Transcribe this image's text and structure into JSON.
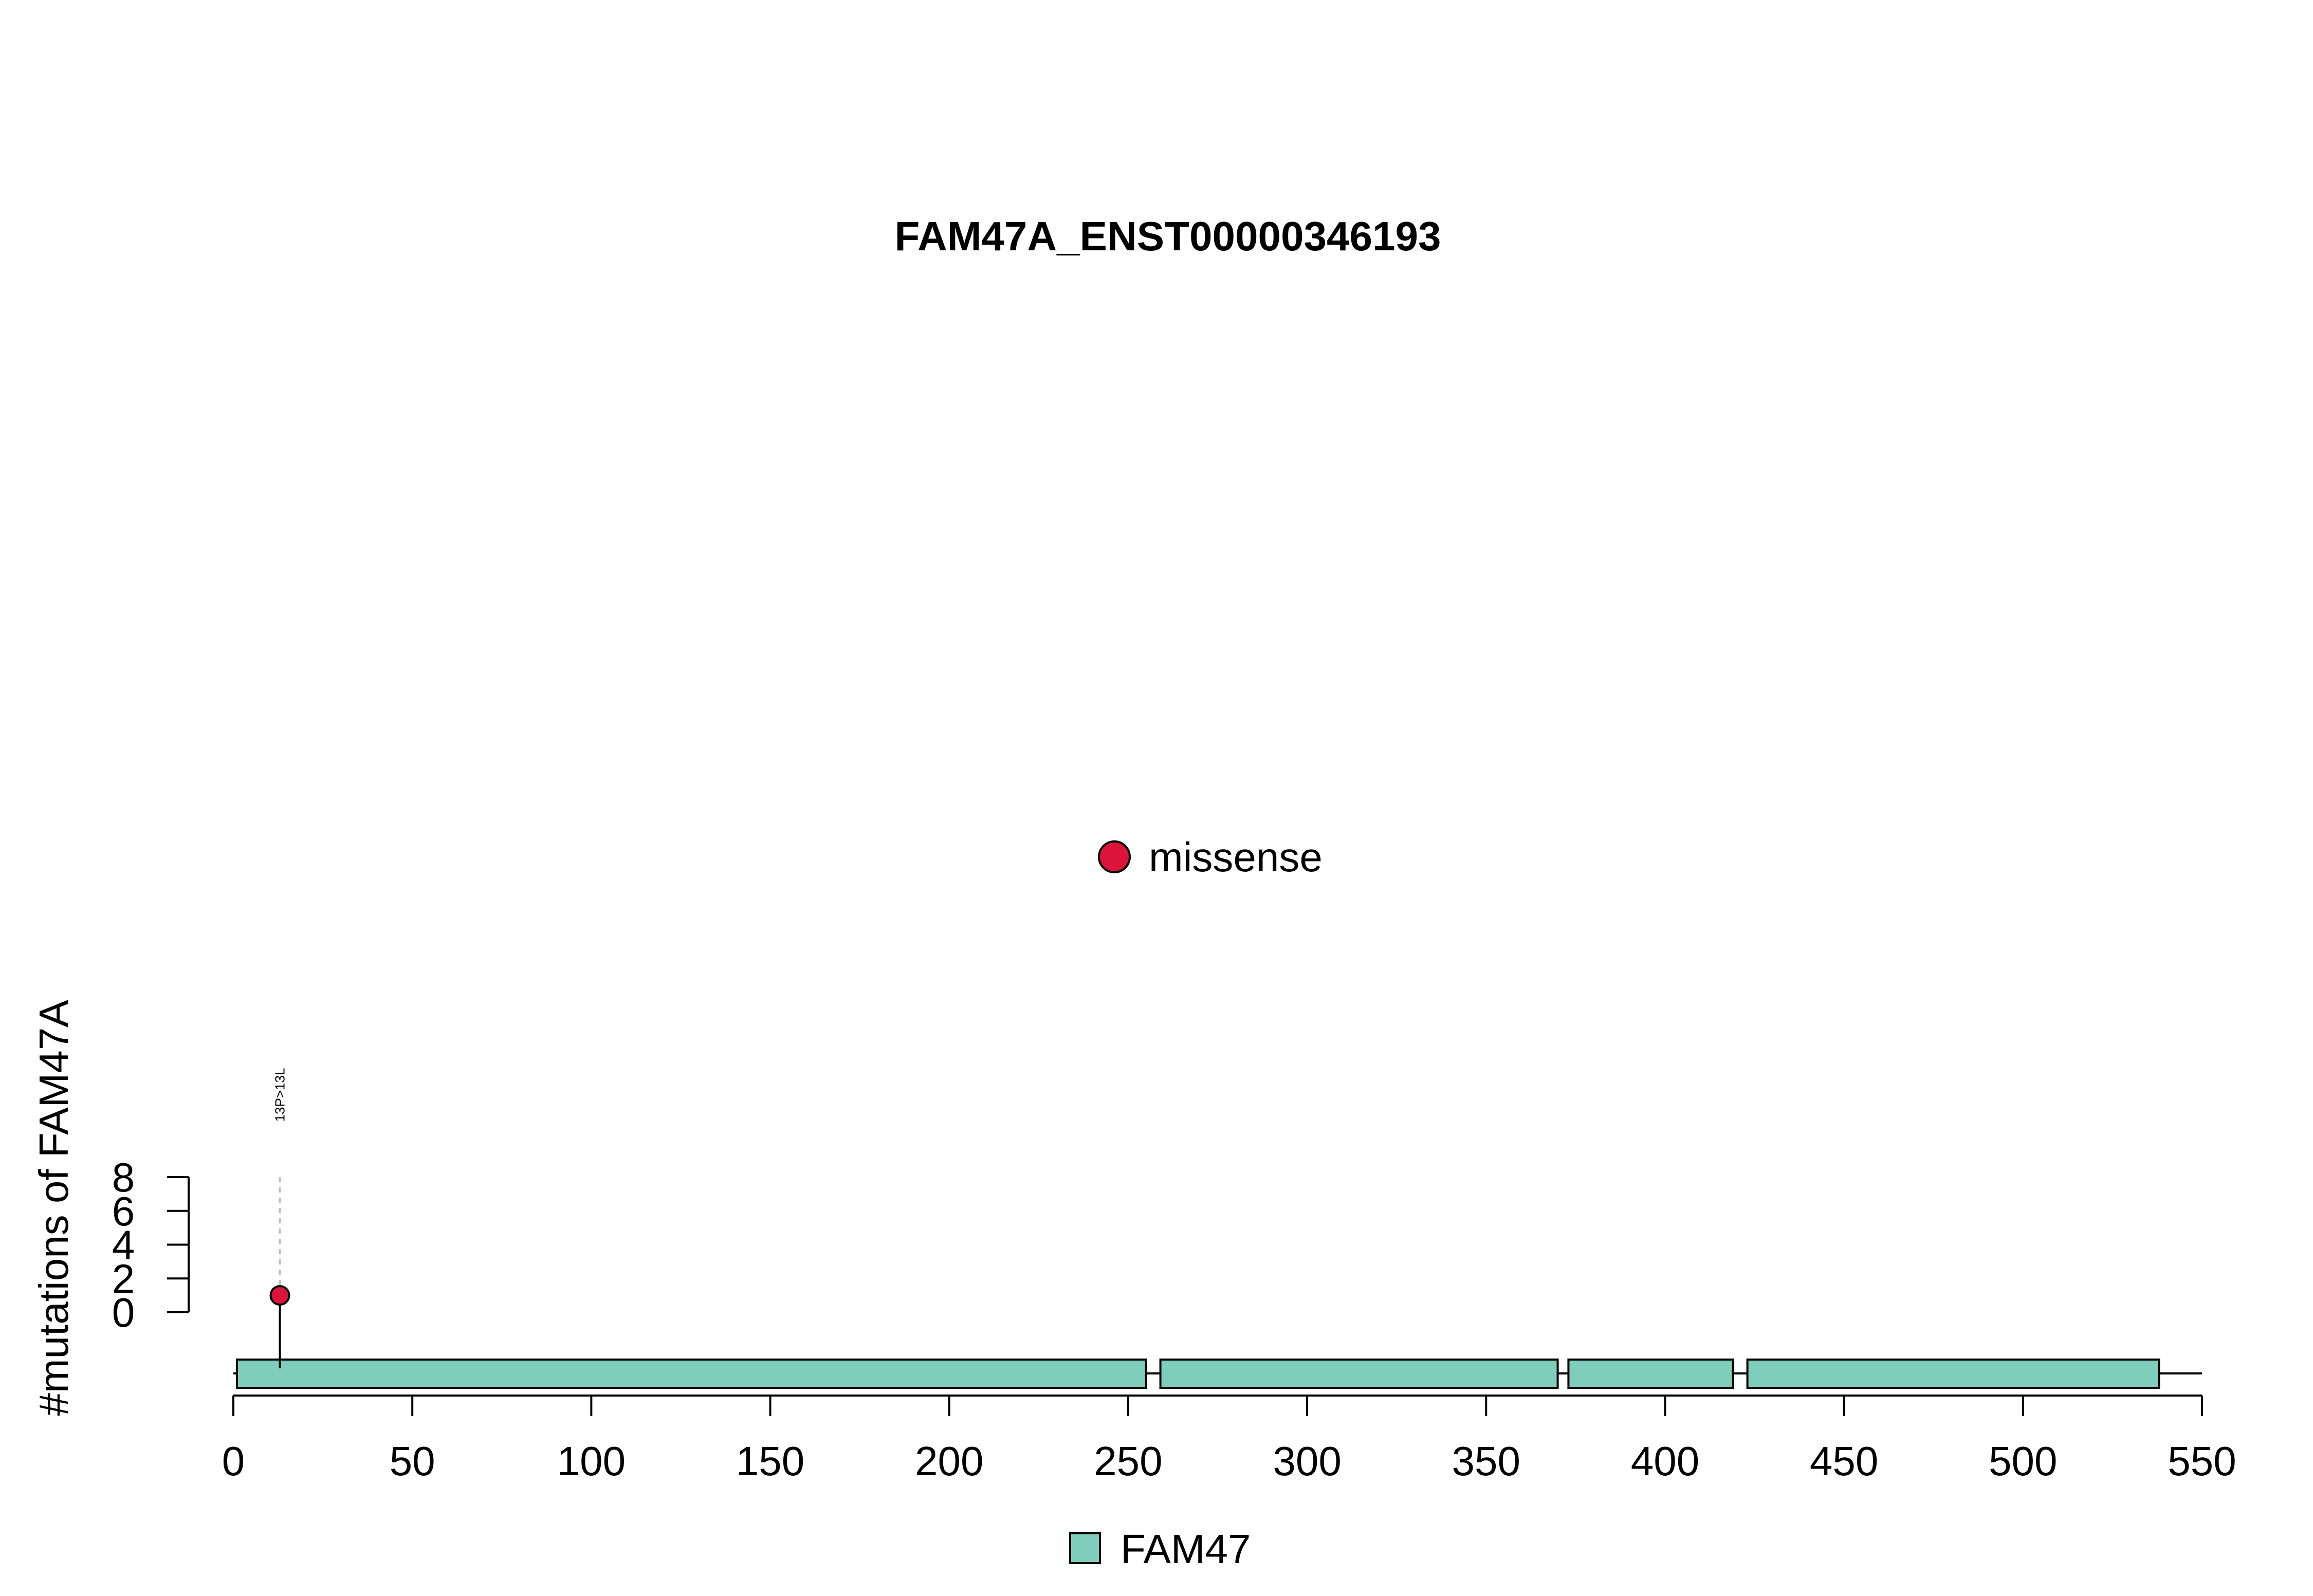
{
  "chart_data": {
    "type": "lollipop",
    "title": "FAM47A_ENST00000346193",
    "ylabel": "#mutations of FAM47A",
    "xlabel": "",
    "x_range": [
      0,
      550
    ],
    "x_ticks": [
      0,
      50,
      100,
      150,
      200,
      250,
      300,
      350,
      400,
      450,
      500,
      550
    ],
    "y_range": [
      0,
      8
    ],
    "y_ticks": [
      0,
      2,
      4,
      6,
      8
    ],
    "protein_length": 550,
    "domains": [
      {
        "name": "FAM47",
        "start": 1,
        "end": 255,
        "color": "#7fcdbb"
      },
      {
        "name": "FAM47",
        "start": 259,
        "end": 370,
        "color": "#7fcdbb"
      },
      {
        "name": "FAM47",
        "start": 373,
        "end": 419,
        "color": "#7fcdbb"
      },
      {
        "name": "FAM47",
        "start": 423,
        "end": 538,
        "color": "#7fcdbb"
      }
    ],
    "mutations": [
      {
        "position": 13,
        "count": 1,
        "type": "missense",
        "label": "13P>13L",
        "color": "#dc143c"
      }
    ],
    "mutation_legend": [
      {
        "label": "missense",
        "color": "#dc143c"
      }
    ],
    "domain_legend": [
      {
        "label": "FAM47",
        "color": "#7fcdbb"
      }
    ],
    "grid": false
  }
}
